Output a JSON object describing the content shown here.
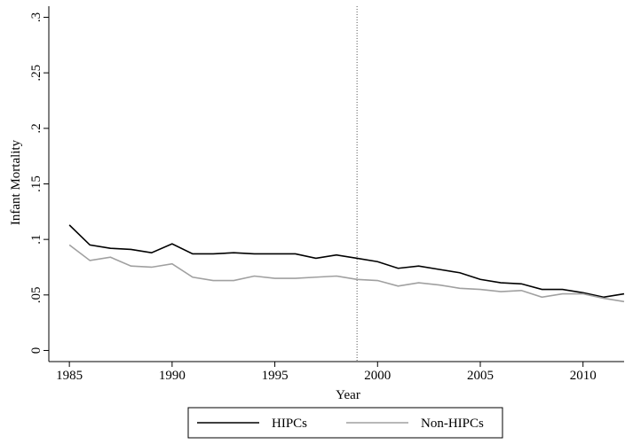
{
  "chart_data": {
    "type": "line",
    "x": [
      1985,
      1986,
      1987,
      1988,
      1989,
      1990,
      1991,
      1992,
      1993,
      1994,
      1995,
      1996,
      1997,
      1998,
      1999,
      2000,
      2001,
      2002,
      2003,
      2004,
      2005,
      2006,
      2007,
      2008,
      2009,
      2010,
      2011,
      2012
    ],
    "series": [
      {
        "name": "HIPCs",
        "color": "#000000",
        "values": [
          0.113,
          0.095,
          0.092,
          0.091,
          0.088,
          0.096,
          0.087,
          0.087,
          0.088,
          0.087,
          0.087,
          0.087,
          0.083,
          0.086,
          0.083,
          0.08,
          0.074,
          0.076,
          0.073,
          0.07,
          0.064,
          0.061,
          0.06,
          0.055,
          0.055,
          0.052,
          0.048,
          0.051
        ]
      },
      {
        "name": "Non-HIPCs",
        "color": "#a0a0a0",
        "values": [
          0.095,
          0.081,
          0.084,
          0.076,
          0.075,
          0.078,
          0.066,
          0.063,
          0.063,
          0.067,
          0.065,
          0.065,
          0.066,
          0.067,
          0.064,
          0.063,
          0.058,
          0.061,
          0.059,
          0.056,
          0.055,
          0.053,
          0.054,
          0.048,
          0.051,
          0.051,
          0.047,
          0.044
        ]
      }
    ],
    "x_label": "Year",
    "y_label": "Infant Mortality",
    "xlim": [
      1984,
      2012
    ],
    "xticks": [
      1985,
      1990,
      1995,
      2000,
      2005,
      2010
    ],
    "ylim": [
      -0.01,
      0.31
    ],
    "yticks": [
      0,
      {
        "value": 0.05,
        "label": ".05"
      },
      {
        "value": 0.1,
        "label": ".1"
      },
      {
        "value": 0.15,
        "label": ".15"
      },
      {
        "value": 0.2,
        "label": ".2"
      },
      {
        "value": 0.25,
        "label": ".25"
      },
      {
        "value": 0.3,
        "label": ".3"
      }
    ],
    "reference_line_x": 1999,
    "legend": "bottom"
  }
}
